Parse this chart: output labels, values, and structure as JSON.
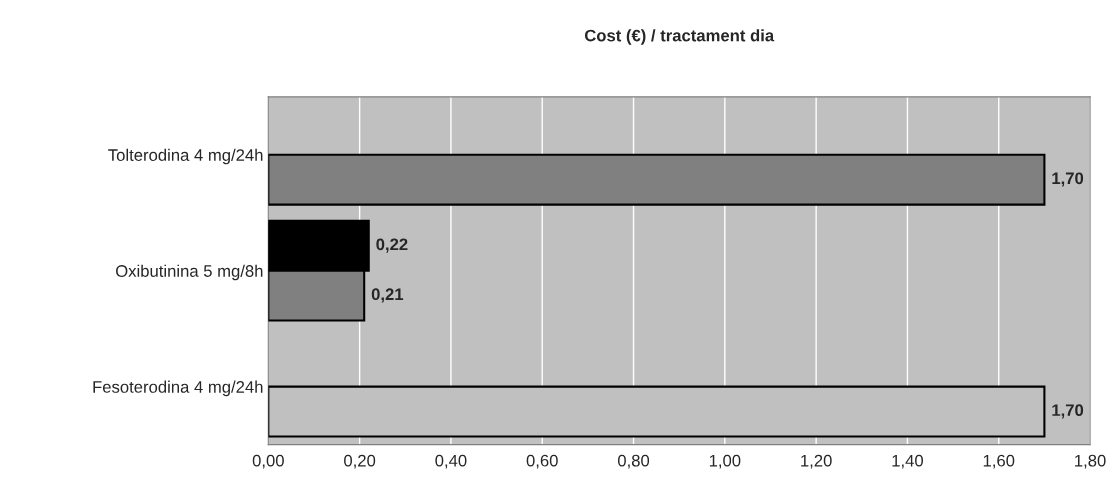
{
  "chart_data": {
    "type": "bar",
    "orientation": "horizontal",
    "title": "Cost (€) / tractament dia",
    "categories": [
      "Tolterodina 4 mg/24h",
      "Oxibutinina 5 mg/8h",
      "Fesoterodina 4 mg/24h"
    ],
    "series": [
      {
        "color": "#000000",
        "values": [
          null,
          0.22,
          null
        ],
        "value_labels": [
          null,
          "0,22",
          null
        ]
      },
      {
        "colors": [
          "#808080",
          "#808080",
          "#c0c0c0"
        ],
        "values": [
          1.7,
          0.21,
          1.7
        ],
        "value_labels": [
          "1,70",
          "0,21",
          "1,70"
        ]
      }
    ],
    "xlim": [
      0,
      1.8
    ],
    "xticks": [
      {
        "value": 0,
        "label": "0,00"
      },
      {
        "value": 0.2,
        "label": "0,20"
      },
      {
        "value": 0.4,
        "label": "0,40"
      },
      {
        "value": 0.6,
        "label": "0,60"
      },
      {
        "value": 0.8,
        "label": "0,80"
      },
      {
        "value": 1.0,
        "label": "1,00"
      },
      {
        "value": 1.2,
        "label": "1,20"
      },
      {
        "value": 1.4,
        "label": "1,40"
      },
      {
        "value": 1.6,
        "label": "1,60"
      },
      {
        "value": 1.8,
        "label": "1,80"
      }
    ],
    "grid": "x",
    "legend": false
  }
}
